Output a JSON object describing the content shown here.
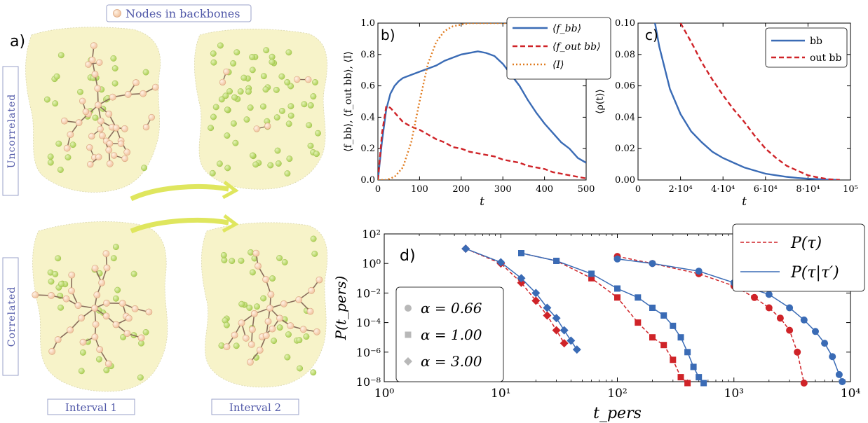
{
  "panel_a": {
    "label": "a)",
    "legend_label": "Nodes in backbones",
    "row_labels": [
      "Uncorrelated",
      "Correlated"
    ],
    "column_labels": [
      "Interval 1",
      "Interval 2"
    ],
    "colors": {
      "blob": "#f7f3c9",
      "node_bb": "#f6d2b4",
      "node_other": "#c6df7e",
      "edge": "#8a6d5c",
      "arrow": "#dfe65e",
      "label_text": "#5058a8"
    }
  },
  "chart_data": [
    {
      "id": "b",
      "label": "b)",
      "type": "line",
      "xlabel": "t",
      "ylabel": "⟨f_bb⟩, ⟨f_out bb⟩, ⟨I⟩",
      "xlim": [
        0,
        500
      ],
      "ylim": [
        0,
        1.0
      ],
      "xticks": [
        0,
        100,
        200,
        300,
        400,
        500
      ],
      "yticks": [
        0.0,
        0.2,
        0.4,
        0.6,
        0.8,
        1.0
      ],
      "xtick_labels": [
        "0",
        "100",
        "200",
        "300",
        "400",
        "500"
      ],
      "ytick_labels": [
        "0.0",
        "0.2",
        "0.4",
        "0.6",
        "0.8",
        "1.0"
      ],
      "legend_position": "top-right",
      "series": [
        {
          "name": "⟨f_bb⟩",
          "style": "solid",
          "color": "#3a6bb5",
          "x": [
            0,
            10,
            20,
            30,
            40,
            50,
            60,
            80,
            100,
            120,
            140,
            160,
            180,
            200,
            220,
            240,
            260,
            280,
            300,
            320,
            340,
            360,
            380,
            400,
            420,
            440,
            460,
            480,
            500
          ],
          "y": [
            0,
            0.25,
            0.45,
            0.55,
            0.6,
            0.63,
            0.65,
            0.67,
            0.69,
            0.71,
            0.73,
            0.76,
            0.78,
            0.8,
            0.81,
            0.82,
            0.81,
            0.79,
            0.74,
            0.67,
            0.6,
            0.51,
            0.43,
            0.36,
            0.3,
            0.24,
            0.2,
            0.14,
            0.11
          ]
        },
        {
          "name": "⟨f_out bb⟩",
          "style": "dashed",
          "color": "#cf2328",
          "x": [
            0,
            10,
            20,
            30,
            40,
            50,
            60,
            80,
            100,
            120,
            140,
            160,
            180,
            200,
            220,
            240,
            260,
            280,
            300,
            320,
            340,
            360,
            380,
            400,
            420,
            440,
            460,
            480,
            500
          ],
          "y": [
            0,
            0.3,
            0.47,
            0.46,
            0.43,
            0.4,
            0.37,
            0.34,
            0.32,
            0.29,
            0.26,
            0.24,
            0.21,
            0.2,
            0.18,
            0.17,
            0.16,
            0.15,
            0.13,
            0.12,
            0.11,
            0.09,
            0.08,
            0.07,
            0.05,
            0.04,
            0.03,
            0.02,
            0.01
          ]
        },
        {
          "name": "⟨I⟩",
          "style": "dotted",
          "color": "#e07b1f",
          "x": [
            0,
            20,
            40,
            60,
            80,
            100,
            120,
            140,
            160,
            180,
            200,
            220,
            240,
            260,
            280,
            300,
            350,
            400,
            450,
            500
          ],
          "y": [
            0,
            0.0,
            0.02,
            0.08,
            0.24,
            0.5,
            0.74,
            0.88,
            0.95,
            0.98,
            0.99,
            1.0,
            1.0,
            1.0,
            1.0,
            1.0,
            1.0,
            1.0,
            1.0,
            1.0
          ]
        }
      ]
    },
    {
      "id": "c",
      "label": "c)",
      "type": "line",
      "xlabel": "t",
      "ylabel": "⟨ρ(t)⟩",
      "xlim": [
        0,
        100000
      ],
      "ylim": [
        0,
        0.1
      ],
      "xticks": [
        0,
        20000,
        40000,
        60000,
        80000,
        100000
      ],
      "yticks": [
        0.0,
        0.02,
        0.04,
        0.06,
        0.08,
        0.1
      ],
      "xtick_labels": [
        "0",
        "2·10⁴",
        "4·10⁴",
        "6·10⁴",
        "8·10⁴",
        "10⁵"
      ],
      "ytick_labels": [
        "0.00",
        "0.02",
        "0.04",
        "0.06",
        "0.08",
        "0.10"
      ],
      "legend_position": "top-right",
      "series": [
        {
          "name": "bb",
          "style": "solid",
          "color": "#3a6bb5",
          "x": [
            8000,
            10000,
            15000,
            20000,
            25000,
            30000,
            35000,
            40000,
            45000,
            50000,
            55000,
            60000,
            65000,
            70000,
            75000,
            80000,
            90000,
            95000
          ],
          "y": [
            0.1,
            0.085,
            0.058,
            0.042,
            0.031,
            0.024,
            0.018,
            0.014,
            0.011,
            0.008,
            0.006,
            0.004,
            0.003,
            0.002,
            0.0013,
            0.0008,
            0.0002,
            0.0
          ]
        },
        {
          "name": "out bb",
          "style": "dashed",
          "color": "#cf2328",
          "x": [
            20000,
            25000,
            30000,
            35000,
            40000,
            45000,
            50000,
            55000,
            60000,
            65000,
            70000,
            75000,
            80000,
            85000,
            90000,
            95000
          ],
          "y": [
            0.1,
            0.088,
            0.075,
            0.064,
            0.054,
            0.045,
            0.037,
            0.028,
            0.02,
            0.014,
            0.009,
            0.006,
            0.003,
            0.0015,
            0.0005,
            0.0
          ]
        }
      ]
    },
    {
      "id": "d",
      "label": "d)",
      "type": "line",
      "xscale": "log",
      "yscale": "log",
      "xlabel": "t_pers",
      "ylabel": "P(t_pers)",
      "xlim": [
        1,
        10000
      ],
      "ylim": [
        1e-08,
        100
      ],
      "xticks": [
        1,
        10,
        100,
        1000,
        10000
      ],
      "yticks": [
        1e-08,
        1e-06,
        0.0001,
        0.01,
        1,
        100
      ],
      "xtick_labels": [
        "10⁰",
        "10¹",
        "10²",
        "10³",
        "10⁴"
      ],
      "ytick_labels": [
        "10⁻⁸",
        "10⁻⁶",
        "10⁻⁴",
        "10⁻²",
        "10⁰",
        "10²"
      ],
      "legend_position": "top-right",
      "line_legend": [
        {
          "name": "P(τ)",
          "style": "dashed",
          "color": "#cf2328"
        },
        {
          "name": "P(τ|τ′)",
          "style": "solid",
          "color": "#3a6bb5"
        }
      ],
      "marker_legend": [
        {
          "name": "α = 0.66",
          "marker": "circle"
        },
        {
          "name": "α = 1.00",
          "marker": "square"
        },
        {
          "name": "α = 3.00",
          "marker": "diamond"
        }
      ],
      "series": [
        {
          "name": "α = 3.00, P(τ)",
          "marker": "diamond",
          "style": "dashed",
          "color": "#cf2328",
          "x": [
            5,
            10,
            15,
            20,
            25,
            30,
            35
          ],
          "y": [
            10,
            1,
            0.05,
            0.003,
            0.0003,
            3e-05,
            4e-06
          ]
        },
        {
          "name": "α = 3.00, P(τ|τ′)",
          "marker": "diamond",
          "style": "solid",
          "color": "#3a6bb5",
          "x": [
            5,
            10,
            15,
            20,
            25,
            30,
            35,
            40,
            45
          ],
          "y": [
            10,
            1.2,
            0.1,
            0.01,
            0.001,
            0.0002,
            3e-05,
            6e-06,
            1.5e-06
          ]
        },
        {
          "name": "α = 1.00, P(τ)",
          "marker": "square",
          "style": "dashed",
          "color": "#cf2328",
          "x": [
            15,
            30,
            60,
            100,
            150,
            200,
            250,
            300,
            350,
            400
          ],
          "y": [
            5,
            1.5,
            0.1,
            0.005,
            0.0001,
            1e-05,
            3e-06,
            3e-07,
            2e-08,
            8e-09
          ]
        },
        {
          "name": "α = 1.00, P(τ|τ′)",
          "marker": "square",
          "style": "solid",
          "color": "#3a6bb5",
          "x": [
            15,
            30,
            60,
            100,
            150,
            200,
            250,
            300,
            350,
            400,
            450,
            500,
            550
          ],
          "y": [
            5,
            1.5,
            0.2,
            0.02,
            0.005,
            0.001,
            0.0003,
            6e-05,
            1e-05,
            1e-06,
            1e-07,
            2e-08,
            8e-09
          ]
        },
        {
          "name": "α = 0.66, P(τ)",
          "marker": "circle",
          "style": "dashed",
          "color": "#cf2328",
          "x": [
            100,
            200,
            500,
            1000,
            1500,
            2000,
            2500,
            3000,
            3500,
            4000
          ],
          "y": [
            3,
            1,
            0.2,
            0.03,
            0.005,
            0.001,
            0.0002,
            3e-05,
            1e-06,
            8e-09
          ]
        },
        {
          "name": "α = 0.66, P(τ|τ′)",
          "marker": "circle",
          "style": "solid",
          "color": "#3a6bb5",
          "x": [
            100,
            200,
            500,
            1000,
            2000,
            3000,
            4000,
            5000,
            6000,
            7000,
            8000,
            8500
          ],
          "y": [
            2,
            1,
            0.3,
            0.05,
            0.008,
            0.001,
            0.00015,
            2.5e-05,
            4e-06,
            5e-07,
            3e-08,
            1e-08
          ]
        }
      ]
    }
  ]
}
